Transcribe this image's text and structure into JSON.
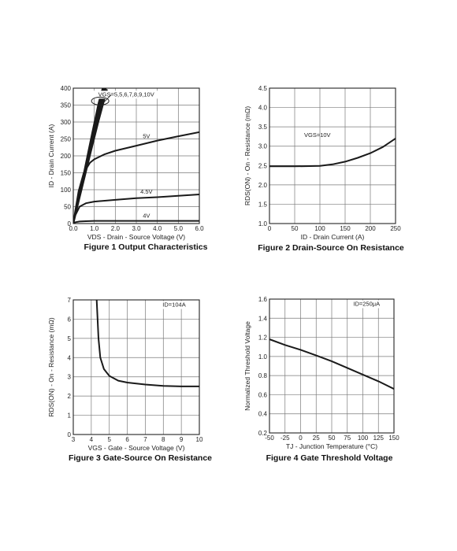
{
  "chart_data": [
    {
      "id": "fig1",
      "type": "line",
      "caption": "Figure 1 Output Characteristics",
      "xlabel": "VDS - Drain - Source Voltage (V)",
      "ylabel": "ID - Drain Current (A)",
      "xlim": [
        0,
        6
      ],
      "ylim": [
        0,
        400
      ],
      "xticks": [
        "0.0",
        "1.0",
        "2.0",
        "3.0",
        "4.0",
        "5.0",
        "6.0"
      ],
      "yticks": [
        "0",
        "50",
        "100",
        "150",
        "200",
        "250",
        "300",
        "350",
        "400"
      ],
      "annotations": [
        "VGS=5,5,6,7,8,9,10V",
        "5V",
        "4.5V",
        "4V"
      ],
      "series": [
        {
          "x": [
            0,
            0.3,
            0.6,
            0.9,
            1.2,
            1.4
          ],
          "y": [
            0,
            88,
            178,
            268,
            355,
            400
          ]
        },
        {
          "x": [
            0,
            0.3,
            0.6,
            0.9,
            1.2,
            1.45
          ],
          "y": [
            0,
            85,
            172,
            258,
            342,
            400
          ]
        },
        {
          "x": [
            0,
            0.3,
            0.6,
            0.9,
            1.2,
            1.5
          ],
          "y": [
            0,
            82,
            166,
            248,
            330,
            400
          ]
        },
        {
          "x": [
            0,
            0.3,
            0.6,
            0.9,
            1.2,
            1.55
          ],
          "y": [
            0,
            80,
            160,
            240,
            318,
            400
          ]
        },
        {
          "x": [
            0,
            0.3,
            0.6,
            0.9,
            1.2,
            1.6
          ],
          "y": [
            0,
            76,
            152,
            228,
            302,
            395
          ]
        },
        {
          "x": [
            0,
            0.1,
            0.25,
            0.5,
            0.8,
            1.0,
            1.5,
            2.0,
            3.0,
            4.0,
            5.0,
            6.0
          ],
          "y": [
            0,
            40,
            95,
            150,
            180,
            190,
            205,
            215,
            230,
            245,
            258,
            270
          ]
        },
        {
          "x": [
            0,
            0.1,
            0.3,
            0.6,
            1.0,
            2.0,
            3.0,
            4.0,
            5.0,
            6.0
          ],
          "y": [
            0,
            25,
            50,
            60,
            65,
            70,
            75,
            78,
            82,
            86
          ]
        },
        {
          "x": [
            0,
            0.1,
            0.3,
            0.6,
            1.0,
            2.0,
            4.0,
            6.0
          ],
          "y": [
            0,
            4,
            6,
            7,
            8,
            8,
            8,
            8
          ]
        }
      ]
    },
    {
      "id": "fig2",
      "type": "line",
      "caption": "Figure 2 Drain-Source On Resistance",
      "xlabel": "ID - Drain Current (A)",
      "ylabel": "RDS(ON) - On - Resistance (mΩ)",
      "xlim": [
        0,
        250
      ],
      "ylim": [
        1.0,
        4.5
      ],
      "xticks": [
        "0",
        "50",
        "100",
        "150",
        "200",
        "250"
      ],
      "yticks": [
        "1.0",
        "1.5",
        "2.0",
        "2.5",
        "3.0",
        "3.5",
        "4.0",
        "4.5"
      ],
      "annotations": [
        "VGS=10V"
      ],
      "series": [
        {
          "x": [
            0,
            50,
            100,
            125,
            150,
            175,
            200,
            225,
            250
          ],
          "y": [
            2.48,
            2.48,
            2.49,
            2.53,
            2.6,
            2.7,
            2.82,
            2.98,
            3.2
          ]
        }
      ]
    },
    {
      "id": "fig3",
      "type": "line",
      "caption": "Figure 3 Gate-Source On Resistance",
      "xlabel": "VGS - Gate - Source Voltage (V)",
      "ylabel": "RDS(ON) - On - Resistance (mΩ)",
      "xlim": [
        3,
        10
      ],
      "ylim": [
        0,
        7
      ],
      "xticks": [
        "3",
        "4",
        "5",
        "6",
        "7",
        "8",
        "9",
        "10"
      ],
      "yticks": [
        "0",
        "1",
        "2",
        "3",
        "4",
        "5",
        "6",
        "7"
      ],
      "annotations": [
        "ID=104A"
      ],
      "series": [
        {
          "x": [
            4.3,
            4.4,
            4.5,
            4.7,
            5.0,
            5.5,
            6.0,
            7.0,
            8.0,
            9.0,
            10.0
          ],
          "y": [
            7.0,
            5.0,
            4.0,
            3.4,
            3.05,
            2.8,
            2.7,
            2.6,
            2.53,
            2.5,
            2.5
          ]
        }
      ]
    },
    {
      "id": "fig4",
      "type": "line",
      "caption": "Figure 4 Gate Threshold Voltage",
      "xlabel": "TJ - Junction Temperature (°C)",
      "ylabel": "Normalized Threshold Voltage",
      "xlim": [
        -50,
        150
      ],
      "ylim": [
        0.2,
        1.6
      ],
      "xticks": [
        "-50",
        "-25",
        "0",
        "25",
        "50",
        "75",
        "100",
        "125",
        "150"
      ],
      "yticks": [
        "0.2",
        "0.4",
        "0.6",
        "0.8",
        "1.0",
        "1.2",
        "1.4",
        "1.6"
      ],
      "annotations": [
        "ID=250μA"
      ],
      "series": [
        {
          "x": [
            -50,
            -25,
            0,
            25,
            50,
            75,
            100,
            125,
            150
          ],
          "y": [
            1.18,
            1.12,
            1.07,
            1.01,
            0.95,
            0.88,
            0.81,
            0.74,
            0.66
          ]
        }
      ]
    }
  ]
}
